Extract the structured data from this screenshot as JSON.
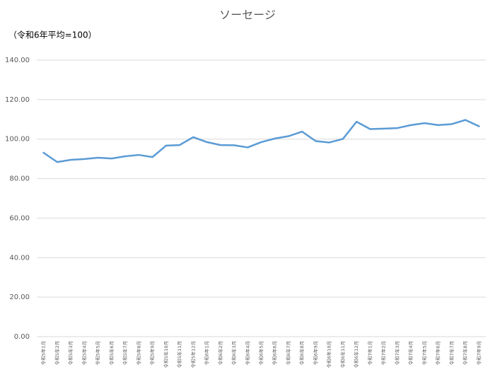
{
  "chart_data": {
    "type": "line",
    "title": "ソーセージ",
    "subtitle": "（令和6年平均=100）",
    "categories": [
      "令和5年1月",
      "令和5年2月",
      "令和5年3月",
      "令和5年4月",
      "令和5年5月",
      "令和5年6月",
      "令和5年7月",
      "令和5年8月",
      "令和5年9月",
      "令和5年10月",
      "令和5年11月",
      "令和5年12月",
      "令和6年1月",
      "令和6年2月",
      "令和6年3月",
      "令和6年4月",
      "令和6年5月",
      "令和6年6月",
      "令和6年7月",
      "令和6年8月",
      "令和6年9月",
      "令和6年10月",
      "令和6年11月",
      "令和6年12月",
      "令和7年1月",
      "令和7年2月",
      "令和7年3月",
      "令和7年4月",
      "令和7年5月",
      "令和7年6月",
      "令和7年7月",
      "令和7年8月",
      "令和7年9月"
    ],
    "series": [
      {
        "name": "ソーセージ",
        "color": "#5b9bd5",
        "values": [
          93.1,
          88.4,
          89.5,
          89.9,
          90.6,
          90.2,
          91.3,
          92.0,
          90.9,
          96.7,
          97.0,
          101.0,
          98.5,
          97.0,
          96.9,
          95.8,
          98.5,
          100.3,
          101.5,
          103.8,
          99.0,
          98.3,
          100.1,
          108.8,
          105.1,
          105.3,
          105.6,
          107.1,
          108.1,
          107.1,
          107.6,
          109.7,
          106.5
        ]
      }
    ],
    "ylim": [
      0,
      140
    ],
    "yticks": [
      {
        "value": 0,
        "label": "0.00"
      },
      {
        "value": 20,
        "label": "20.00"
      },
      {
        "value": 40,
        "label": "40.00"
      },
      {
        "value": 60,
        "label": "60.00"
      },
      {
        "value": 80,
        "label": "80.00"
      },
      {
        "value": 100,
        "label": "100.00"
      },
      {
        "value": 120,
        "label": "120.00"
      },
      {
        "value": 140,
        "label": "140.00"
      }
    ],
    "grid": true
  }
}
